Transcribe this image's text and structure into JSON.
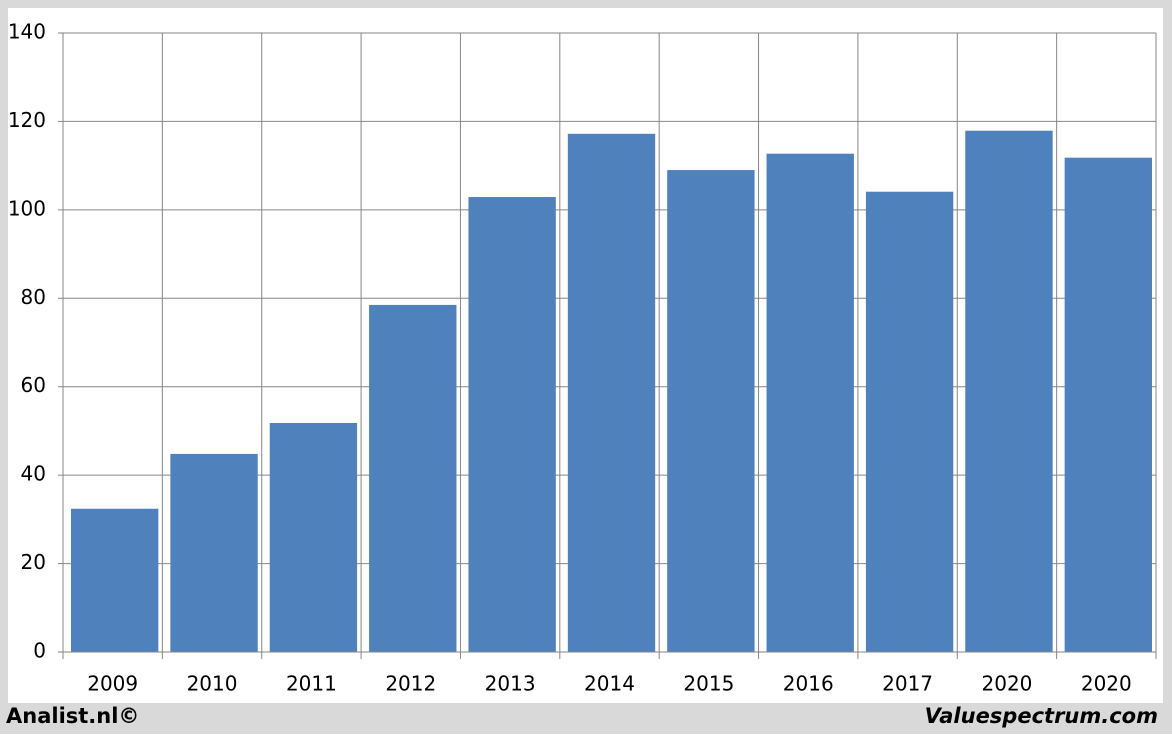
{
  "chart_data": {
    "type": "bar",
    "categories": [
      "2009",
      "2010",
      "2011",
      "2012",
      "2013",
      "2014",
      "2015",
      "2016",
      "2017",
      "2020",
      "2020"
    ],
    "values": [
      32.4,
      44.8,
      51.8,
      78.5,
      102.9,
      117.2,
      109.0,
      112.7,
      104.1,
      117.9,
      111.8
    ],
    "color": "#4f81bd",
    "ylim": [
      0,
      140
    ],
    "yticks": [
      0,
      20,
      40,
      60,
      80,
      100,
      120,
      140
    ],
    "grid": true,
    "footer_left": "Analist.nl©",
    "footer_right": "Valuespectrum.com"
  }
}
